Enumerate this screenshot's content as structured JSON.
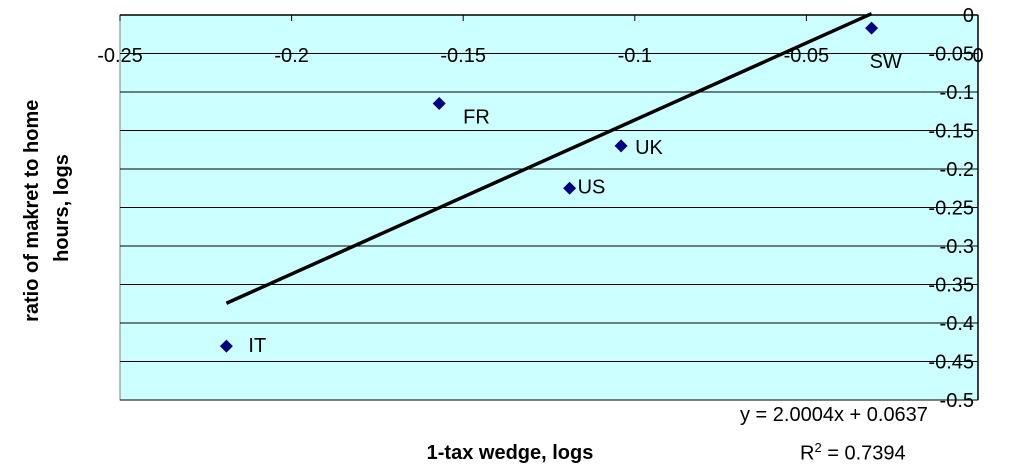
{
  "chart_data": {
    "type": "scatter",
    "title": "",
    "xlabel": "1-tax wedge, logs",
    "ylabel_lines": [
      "ratio of makret to home",
      "hours, logs"
    ],
    "xlim": [
      -0.25,
      0
    ],
    "ylim": [
      -0.5,
      0
    ],
    "x_ticks": [
      -0.25,
      -0.2,
      -0.15,
      -0.1,
      -0.05,
      0
    ],
    "x_tick_labels": [
      "-0.25",
      "-0.2",
      "-0.15",
      "-0.1",
      "-0.05",
      "0"
    ],
    "y_ticks": [
      0,
      -0.05,
      -0.1,
      -0.15,
      -0.2,
      -0.25,
      -0.3,
      -0.35,
      -0.4,
      -0.45,
      -0.5
    ],
    "y_tick_labels": [
      "0",
      "-0.05",
      "-0.1",
      "-0.15",
      "-0.2",
      "-0.25",
      "-0.3",
      "-0.35",
      "-0.4",
      "-0.45",
      "-0.5"
    ],
    "grid": "horizontal",
    "plot_background": "#ccffff",
    "marker_color": "#000080",
    "trendline_color": "#000000",
    "points": [
      {
        "label": "IT",
        "x": -0.219,
        "y": -0.43
      },
      {
        "label": "FR",
        "x": -0.157,
        "y": -0.115
      },
      {
        "label": "US",
        "x": -0.119,
        "y": -0.225
      },
      {
        "label": "UK",
        "x": -0.104,
        "y": -0.17
      },
      {
        "label": "SW",
        "x": -0.031,
        "y": -0.017
      }
    ],
    "trendline": {
      "slope": 2.0004,
      "intercept": 0.0637,
      "x_range": [
        -0.219,
        -0.031
      ],
      "equation_text": "y = 2.0004x + 0.0637",
      "r2_prefix": "R",
      "r2_sup": "2",
      "r2_suffix": " = 0.7394"
    }
  }
}
